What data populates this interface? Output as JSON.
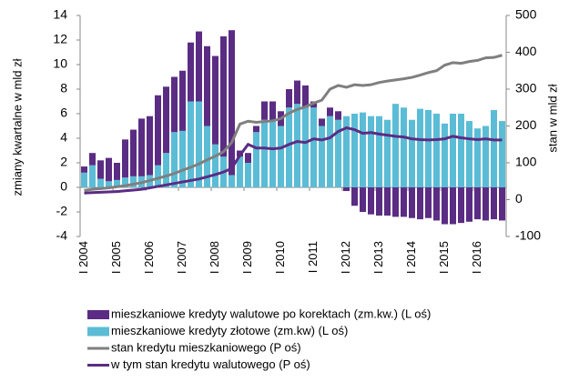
{
  "chart_data": {
    "type": "bar",
    "y_label": "zmiany kwartalne  w mld zł",
    "y2_label": "stan  w mld zł",
    "categories": [
      "I 2004",
      null,
      null,
      null,
      "I 2005",
      null,
      null,
      null,
      "I 2006",
      null,
      null,
      null,
      "I 2007",
      null,
      null,
      null,
      "I 2008",
      null,
      null,
      null,
      "I 2009",
      null,
      null,
      null,
      "I 2010",
      null,
      null,
      null,
      "I 2011",
      null,
      null,
      null,
      "I 2012",
      null,
      null,
      null,
      "I 2013",
      null,
      null,
      null,
      "I 2014",
      null,
      null,
      null,
      "I 2015",
      null,
      null,
      null,
      "I 2016",
      null,
      null,
      null
    ],
    "series": [
      {
        "name": "mieszkaniowe kredyty walutowe po korektach (zm.kw.) (L oś)",
        "type": "bar",
        "color": "#5b2c83",
        "values": [
          0.5,
          1.0,
          1.5,
          1.9,
          1.4,
          3.1,
          3.8,
          4.7,
          4.8,
          5.7,
          5.4,
          4.5,
          4.9,
          4.8,
          5.7,
          6.5,
          7.2,
          9.8,
          11.8,
          0.5,
          0.8,
          0.5,
          1.5,
          1.5,
          1.2,
          1.5,
          1.9,
          1.8,
          0.5,
          0.6,
          0.7,
          0.7,
          -0.3,
          -1.5,
          -2.0,
          -2.2,
          -2.3,
          -2.3,
          -2.4,
          -2.4,
          -2.5,
          -2.6,
          -2.5,
          -2.7,
          -3.0,
          -3.0,
          -2.9,
          -2.8,
          -2.6,
          -2.7,
          -2.6,
          -2.7
        ]
      },
      {
        "name": "mieszkaniowe kredyty złotowe (zm.kw) (L oś)",
        "type": "bar",
        "color": "#5bbcd6",
        "values": [
          1.2,
          1.8,
          0.7,
          0.5,
          0.6,
          0.8,
          0.9,
          0.9,
          1.0,
          1.8,
          2.8,
          4.5,
          4.6,
          7.0,
          7.0,
          5.0,
          3.5,
          2.5,
          1.0,
          2.5,
          2.0,
          4.5,
          5.5,
          5.5,
          5.0,
          6.5,
          6.8,
          6.5,
          6.5,
          5.0,
          5.8,
          5.5,
          5.8,
          6.0,
          6.1,
          5.8,
          5.8,
          5.5,
          6.8,
          6.5,
          5.5,
          6.4,
          6.3,
          6.0,
          5.2,
          6.0,
          6.0,
          5.4,
          4.8,
          5.0,
          6.3,
          5.4
        ]
      },
      {
        "name": "stan kredytu mieszkaniowego (P oś)",
        "type": "line",
        "axis": "y2",
        "color": "#7f7f7f",
        "values": [
          25,
          28,
          30,
          32,
          35,
          38,
          42,
          46,
          52,
          58,
          64,
          71,
          80,
          88,
          97,
          108,
          118,
          130,
          155,
          205,
          213,
          210,
          212,
          214,
          220,
          235,
          245,
          252,
          262,
          270,
          300,
          310,
          305,
          312,
          310,
          312,
          318,
          322,
          325,
          328,
          332,
          338,
          345,
          350,
          365,
          372,
          370,
          375,
          378,
          385,
          386,
          392
        ]
      },
      {
        "name": "w tym stan kredytu walutowego (P oś)",
        "type": "line",
        "axis": "y2",
        "color": "#5b2c83",
        "values": [
          18,
          19,
          20,
          21,
          22,
          24,
          26,
          28,
          32,
          36,
          40,
          44,
          48,
          52,
          56,
          62,
          68,
          75,
          85,
          120,
          150,
          140,
          140,
          138,
          140,
          150,
          158,
          155,
          165,
          162,
          168,
          185,
          195,
          190,
          180,
          182,
          178,
          175,
          172,
          170,
          165,
          163,
          162,
          163,
          165,
          172,
          168,
          165,
          163,
          165,
          162,
          162
        ]
      }
    ],
    "ylim": [
      -4,
      14
    ],
    "yticks": [
      -4,
      -2,
      0,
      2,
      4,
      6,
      8,
      10,
      12,
      14
    ],
    "y2lim": [
      -100,
      500
    ],
    "y2ticks": [
      -100,
      0,
      100,
      200,
      300,
      400,
      500
    ]
  }
}
